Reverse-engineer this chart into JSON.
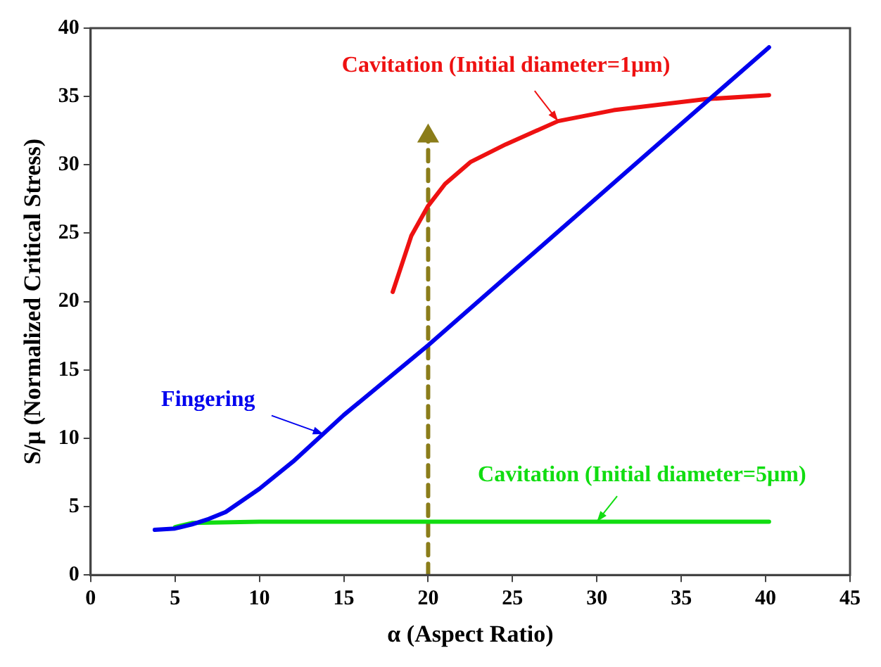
{
  "chart_data": {
    "type": "line",
    "xlabel": "α (Aspect Ratio)",
    "ylabel": "S/μ (Normalized Critical Stress)",
    "xlim": [
      0,
      45
    ],
    "xticks": [
      0,
      5,
      10,
      15,
      20,
      25,
      30,
      35,
      40,
      45
    ],
    "ylim": [
      0,
      40
    ],
    "yticks": [
      0,
      5,
      10,
      15,
      20,
      25,
      30,
      35,
      40
    ],
    "grid": false,
    "legend": false,
    "marker": "none",
    "line_style": "solid",
    "series": [
      {
        "color": "#0000ee",
        "x": [
          3.8,
          5,
          6,
          7,
          8,
          10,
          12,
          15,
          20,
          25,
          30,
          35,
          40.2
        ],
        "values": [
          3.3,
          3.4,
          3.7,
          4.1,
          4.6,
          6.3,
          8.3,
          11.7,
          16.8,
          22.2,
          27.6,
          33,
          38.6
        ]
      },
      {
        "color": "#ee1111",
        "x": [
          17.9,
          19,
          20,
          21,
          22.5,
          24.6,
          27.7,
          31,
          36.4,
          40.2
        ],
        "values": [
          20.7,
          24.8,
          27,
          28.6,
          30.2,
          31.5,
          33.2,
          34,
          34.8,
          35.1
        ]
      },
      {
        "color": "#11dd11",
        "x": [
          5,
          6,
          10,
          20,
          30,
          40.2
        ],
        "values": [
          3.5,
          3.8,
          3.9,
          3.9,
          3.9,
          3.9
        ]
      },
      {
        "color": "#8b7d1a",
        "line_style": "dashed",
        "marker": "triangle",
        "x": [
          20,
          20
        ],
        "values": [
          0,
          32.1
        ]
      }
    ],
    "annotations": [
      {
        "text": "Fingering",
        "x": 13.8,
        "y": 10.3
      },
      {
        "text": "Cavitation (Initial diameter=1μm)",
        "x": 27.7,
        "y": 33.2
      },
      {
        "text": "Cavitation (Initial diameter=5μm)",
        "x": 30,
        "y": 3.9
      }
    ]
  }
}
